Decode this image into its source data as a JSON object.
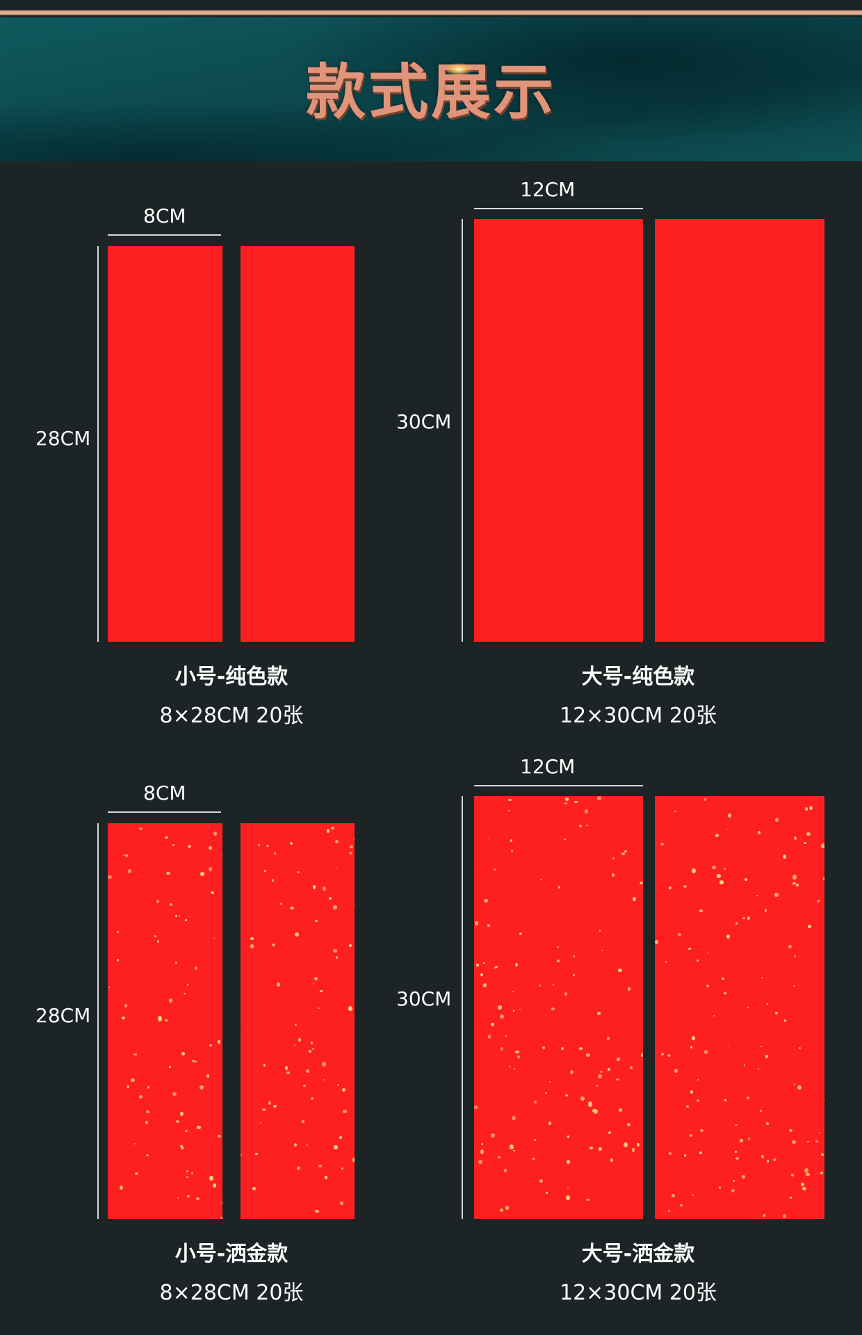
{
  "header": {
    "title": "款式展示"
  },
  "colors": {
    "paper_red": "#fe2020",
    "gold_fleck": "#f6d37a",
    "background": "#1d2426",
    "banner_teal": "#0c4a50"
  },
  "products": [
    {
      "name": "小号-纯色款",
      "spec": "8×28CM 20张",
      "width_label": "8CM",
      "height_label": "28CM",
      "style": "solid"
    },
    {
      "name": "大号-纯色款",
      "spec": "12×30CM 20张",
      "width_label": "12CM",
      "height_label": "30CM",
      "style": "solid"
    },
    {
      "name": "小号-洒金款",
      "spec": "8×28CM 20张",
      "width_label": "8CM",
      "height_label": "28CM",
      "style": "gold-fleck"
    },
    {
      "name": "大号-洒金款",
      "spec": "12×30CM 20张",
      "width_label": "12CM",
      "height_label": "30CM",
      "style": "gold-fleck"
    }
  ]
}
